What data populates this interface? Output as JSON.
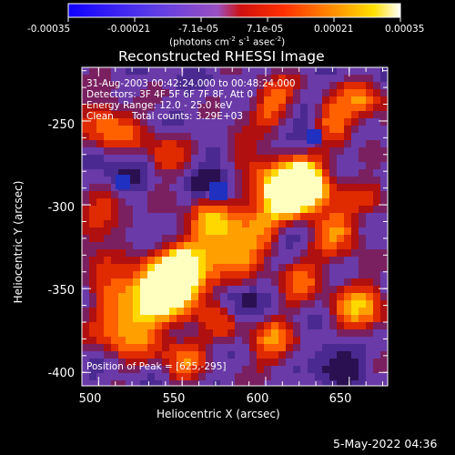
{
  "colorbar": {
    "ticks": [
      "-0.00035",
      "-0.00021",
      "-7.1e-05",
      "7.1e-05",
      "0.00021",
      "0.00035"
    ],
    "unit": "(photons cm^-2 s^-1 asec^-2)",
    "unit_parts": {
      "a": "(photons cm",
      "b": "-2",
      "c": " s",
      "d": "-1",
      "e": " asec",
      "f": "-2",
      "g": ")"
    },
    "colors": [
      "#1000ff",
      "#6040e0",
      "#a050b0",
      "#ff0000",
      "#ff6a00",
      "#ffc000",
      "#ffffff"
    ]
  },
  "title": "Reconstructed RHESSI Image",
  "axes": {
    "xlabel": "Heliocentric X (arcsec)",
    "ylabel": "Heliocentric Y (arcsec)",
    "xticks": [
      "500",
      "550",
      "600",
      "650"
    ],
    "yticks": [
      "-250",
      "-300",
      "-350",
      "-400"
    ]
  },
  "info": {
    "line1": "31-Aug-2003 00:42:24.000 to 00:48:24.000",
    "line2": "Detectors: 3F 4F 5F 6F 7F 8F, Att 0",
    "line3": "Energy Range: 12.0 - 25.0 keV",
    "line4a": "Clean",
    "line4b": "Total counts: 3.29E+03",
    "peak": "Position of Peak = [625,-295]"
  },
  "footer_date": "5-May-2022 04:36"
}
